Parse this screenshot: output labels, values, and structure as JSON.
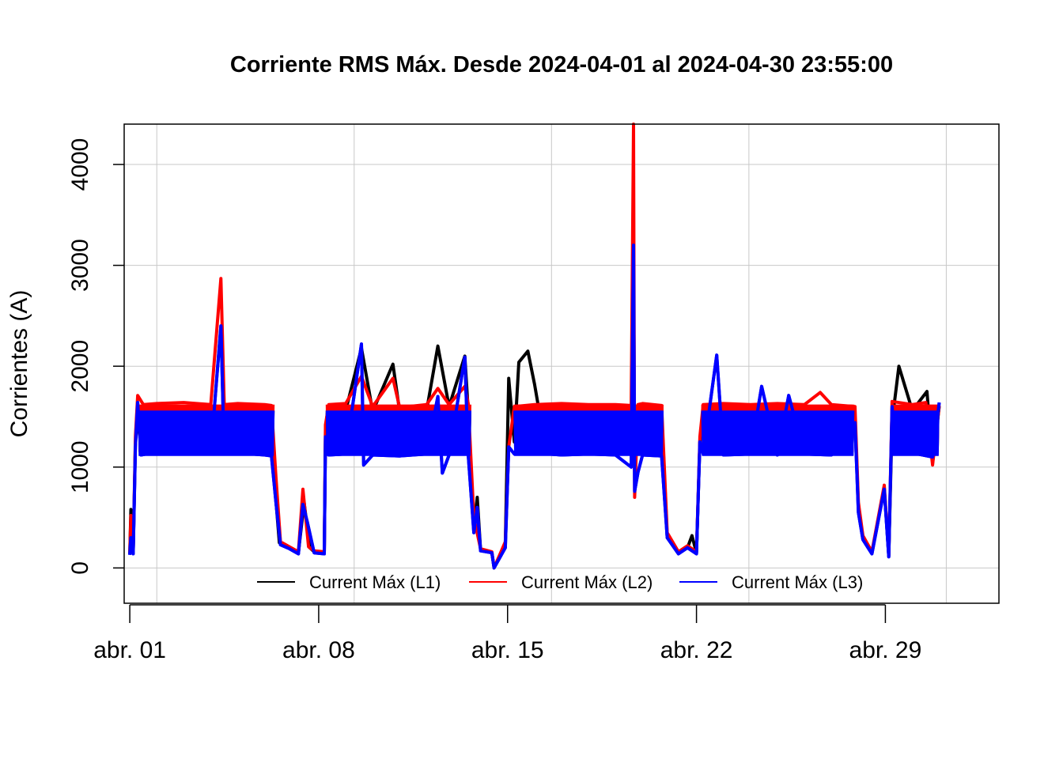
{
  "chart_data": {
    "type": "line",
    "title": "Corriente RMS Máx. Desde  2024-04-01  al  2024-04-30 23:55:00",
    "xlabel": "",
    "ylabel": "Corrientes (A)",
    "xlim": [
      "2024-03-31T19:00",
      "2024-05-03T05:00"
    ],
    "ylim": [
      -350,
      4400
    ],
    "x_ticks": [
      {
        "label": "abr. 01",
        "date": "2024-04-01T00:00"
      },
      {
        "label": "abr. 08",
        "date": "2024-04-08T00:00"
      },
      {
        "label": "abr. 15",
        "date": "2024-04-15T00:00"
      },
      {
        "label": "abr. 22",
        "date": "2024-04-22T00:00"
      },
      {
        "label": "abr. 29",
        "date": "2024-04-29T00:00"
      }
    ],
    "y_ticks": [
      0,
      1000,
      2000,
      3000,
      4000
    ],
    "grid": true,
    "legend_position": "bottom",
    "series": [
      {
        "name": "Current Máx (L1)",
        "color": "#000000",
        "points": [
          [
            "2024-04-01T00:00",
            140
          ],
          [
            "2024-04-01T01:00",
            580
          ],
          [
            "2024-04-01T03:00",
            150
          ],
          [
            "2024-04-01T05:00",
            1250
          ],
          [
            "2024-04-01T08:00",
            1560
          ],
          [
            "2024-04-02T00:00",
            1540
          ],
          [
            "2024-04-03T00:00",
            1560
          ],
          [
            "2024-04-04T00:00",
            1550
          ],
          [
            "2024-04-04T09:00",
            1580
          ],
          [
            "2024-04-05T00:00",
            1560
          ],
          [
            "2024-04-06T00:00",
            1550
          ],
          [
            "2024-04-06T05:00",
            1560
          ],
          [
            "2024-04-06T09:00",
            800
          ],
          [
            "2024-04-06T13:00",
            250
          ],
          [
            "2024-04-06T22:00",
            200
          ],
          [
            "2024-04-07T06:00",
            150
          ],
          [
            "2024-04-07T11:00",
            650
          ],
          [
            "2024-04-07T16:00",
            200
          ],
          [
            "2024-04-07T20:00",
            160
          ],
          [
            "2024-04-08T05:00",
            150
          ],
          [
            "2024-04-08T06:00",
            1350
          ],
          [
            "2024-04-08T08:00",
            1570
          ],
          [
            "2024-04-09T00:00",
            1560
          ],
          [
            "2024-04-09T14:00",
            2180
          ],
          [
            "2024-04-10T00:00",
            1550
          ],
          [
            "2024-04-10T18:00",
            2020
          ],
          [
            "2024-04-11T00:00",
            1550
          ],
          [
            "2024-04-12T00:00",
            1560
          ],
          [
            "2024-04-12T10:00",
            2200
          ],
          [
            "2024-04-12T20:00",
            1600
          ],
          [
            "2024-04-13T10:00",
            2100
          ],
          [
            "2024-04-13T13:00",
            1560
          ],
          [
            "2024-04-13T18:00",
            380
          ],
          [
            "2024-04-13T21:00",
            700
          ],
          [
            "2024-04-14T00:00",
            180
          ],
          [
            "2024-04-14T10:00",
            150
          ],
          [
            "2024-04-14T12:00",
            0
          ],
          [
            "2024-04-14T22:00",
            250
          ],
          [
            "2024-04-15T01:00",
            1880
          ],
          [
            "2024-04-15T06:00",
            1250
          ],
          [
            "2024-04-15T10:00",
            2040
          ],
          [
            "2024-04-15T18:00",
            2150
          ],
          [
            "2024-04-16T00:00",
            1820
          ],
          [
            "2024-04-16T04:00",
            1560
          ],
          [
            "2024-04-17T00:00",
            1560
          ],
          [
            "2024-04-18T00:00",
            1570
          ],
          [
            "2024-04-19T00:00",
            1550
          ],
          [
            "2024-04-19T18:00",
            1560
          ],
          [
            "2024-04-19T21:00",
            1200
          ],
          [
            "2024-04-20T00:00",
            1560
          ],
          [
            "2024-04-20T17:00",
            1550
          ],
          [
            "2024-04-20T22:00",
            300
          ],
          [
            "2024-04-21T08:00",
            150
          ],
          [
            "2024-04-21T16:00",
            200
          ],
          [
            "2024-04-21T20:00",
            320
          ],
          [
            "2024-04-22T00:00",
            150
          ],
          [
            "2024-04-22T03:00",
            1250
          ],
          [
            "2024-04-22T06:00",
            1570
          ],
          [
            "2024-04-23T00:00",
            1560
          ],
          [
            "2024-04-24T00:00",
            1570
          ],
          [
            "2024-04-25T00:00",
            1560
          ],
          [
            "2024-04-26T00:00",
            1560
          ],
          [
            "2024-04-27T00:00",
            1560
          ],
          [
            "2024-04-27T21:00",
            1500
          ],
          [
            "2024-04-28T00:00",
            600
          ],
          [
            "2024-04-28T04:00",
            300
          ],
          [
            "2024-04-28T12:00",
            150
          ],
          [
            "2024-04-28T23:00",
            800
          ],
          [
            "2024-04-29T03:00",
            120
          ],
          [
            "2024-04-29T06:00",
            1450
          ],
          [
            "2024-04-29T12:00",
            2000
          ],
          [
            "2024-04-30T00:00",
            1560
          ],
          [
            "2024-04-30T13:00",
            1750
          ],
          [
            "2024-04-30T18:00",
            1040
          ],
          [
            "2024-04-30T23:55",
            1600
          ]
        ]
      },
      {
        "name": "Current Máx (L2)",
        "color": "#ff0000",
        "points": [
          [
            "2024-04-01T00:00",
            150
          ],
          [
            "2024-04-01T01:00",
            520
          ],
          [
            "2024-04-01T03:00",
            160
          ],
          [
            "2024-04-01T05:00",
            1300
          ],
          [
            "2024-04-01T07:00",
            1710
          ],
          [
            "2024-04-01T12:00",
            1620
          ],
          [
            "2024-04-02T00:00",
            1630
          ],
          [
            "2024-04-03T00:00",
            1640
          ],
          [
            "2024-04-04T00:00",
            1620
          ],
          [
            "2024-04-04T09:00",
            2870
          ],
          [
            "2024-04-04T12:00",
            1620
          ],
          [
            "2024-04-05T00:00",
            1630
          ],
          [
            "2024-04-06T00:00",
            1620
          ],
          [
            "2024-04-06T06:00",
            1610
          ],
          [
            "2024-04-06T10:00",
            900
          ],
          [
            "2024-04-06T14:00",
            260
          ],
          [
            "2024-04-06T22:00",
            210
          ],
          [
            "2024-04-07T06:00",
            160
          ],
          [
            "2024-04-07T10:00",
            780
          ],
          [
            "2024-04-07T15:00",
            210
          ],
          [
            "2024-04-07T20:00",
            170
          ],
          [
            "2024-04-08T05:00",
            160
          ],
          [
            "2024-04-08T06:00",
            1420
          ],
          [
            "2024-04-08T09:00",
            1620
          ],
          [
            "2024-04-09T00:00",
            1630
          ],
          [
            "2024-04-09T14:00",
            1900
          ],
          [
            "2024-04-10T00:00",
            1600
          ],
          [
            "2024-04-10T18:00",
            1880
          ],
          [
            "2024-04-11T00:00",
            1590
          ],
          [
            "2024-04-12T00:00",
            1620
          ],
          [
            "2024-04-12T10:00",
            1780
          ],
          [
            "2024-04-12T20:00",
            1620
          ],
          [
            "2024-04-13T10:00",
            1800
          ],
          [
            "2024-04-13T13:00",
            1630
          ],
          [
            "2024-04-13T18:00",
            500
          ],
          [
            "2024-04-14T00:00",
            190
          ],
          [
            "2024-04-14T10:00",
            160
          ],
          [
            "2024-04-14T12:00",
            0
          ],
          [
            "2024-04-14T22:00",
            260
          ],
          [
            "2024-04-15T01:00",
            1200
          ],
          [
            "2024-04-15T06:00",
            1600
          ],
          [
            "2024-04-16T00:00",
            1620
          ],
          [
            "2024-04-17T00:00",
            1630
          ],
          [
            "2024-04-18T00:00",
            1620
          ],
          [
            "2024-04-19T00:00",
            1620
          ],
          [
            "2024-04-19T14:00",
            1610
          ],
          [
            "2024-04-19T16:00",
            4400
          ],
          [
            "2024-04-19T17:00",
            700
          ],
          [
            "2024-04-19T20:00",
            1620
          ],
          [
            "2024-04-20T00:00",
            1630
          ],
          [
            "2024-04-20T17:00",
            1610
          ],
          [
            "2024-04-20T22:00",
            350
          ],
          [
            "2024-04-21T08:00",
            160
          ],
          [
            "2024-04-21T16:00",
            220
          ],
          [
            "2024-04-22T00:00",
            160
          ],
          [
            "2024-04-22T03:00",
            1300
          ],
          [
            "2024-04-22T06:00",
            1620
          ],
          [
            "2024-04-23T00:00",
            1630
          ],
          [
            "2024-04-24T00:00",
            1620
          ],
          [
            "2024-04-25T00:00",
            1630
          ],
          [
            "2024-04-26T00:00",
            1620
          ],
          [
            "2024-04-26T14:00",
            1740
          ],
          [
            "2024-04-27T00:00",
            1620
          ],
          [
            "2024-04-27T21:00",
            1600
          ],
          [
            "2024-04-28T00:00",
            650
          ],
          [
            "2024-04-28T04:00",
            320
          ],
          [
            "2024-04-28T12:00",
            160
          ],
          [
            "2024-04-28T23:00",
            820
          ],
          [
            "2024-04-29T03:00",
            130
          ],
          [
            "2024-04-29T06:00",
            1650
          ],
          [
            "2024-04-30T00:00",
            1620
          ],
          [
            "2024-04-30T12:00",
            1640
          ],
          [
            "2024-04-30T18:00",
            1020
          ],
          [
            "2024-04-30T23:55",
            1610
          ]
        ]
      },
      {
        "name": "Current Máx (L3)",
        "color": "#0000ff",
        "points": [
          [
            "2024-04-01T00:00",
            130
          ],
          [
            "2024-04-01T01:00",
            300
          ],
          [
            "2024-04-01T03:00",
            140
          ],
          [
            "2024-04-01T05:00",
            1200
          ],
          [
            "2024-04-01T07:00",
            1640
          ],
          [
            "2024-04-01T10:00",
            1120
          ],
          [
            "2024-04-02T00:00",
            1150
          ],
          [
            "2024-04-03T00:00",
            1130
          ],
          [
            "2024-04-04T00:00",
            1140
          ],
          [
            "2024-04-04T09:00",
            2400
          ],
          [
            "2024-04-04T12:00",
            1130
          ],
          [
            "2024-04-05T00:00",
            1140
          ],
          [
            "2024-04-06T00:00",
            1120
          ],
          [
            "2024-04-06T06:00",
            1110
          ],
          [
            "2024-04-06T10:00",
            650
          ],
          [
            "2024-04-06T14:00",
            230
          ],
          [
            "2024-04-06T22:00",
            190
          ],
          [
            "2024-04-07T06:00",
            140
          ],
          [
            "2024-04-07T10:00",
            630
          ],
          [
            "2024-04-07T14:00",
            450
          ],
          [
            "2024-04-07T20:00",
            150
          ],
          [
            "2024-04-08T05:00",
            140
          ],
          [
            "2024-04-08T06:00",
            1300
          ],
          [
            "2024-04-08T09:00",
            1120
          ],
          [
            "2024-04-09T00:00",
            1130
          ],
          [
            "2024-04-09T14:00",
            2220
          ],
          [
            "2024-04-09T16:00",
            1020
          ],
          [
            "2024-04-10T00:00",
            1120
          ],
          [
            "2024-04-11T00:00",
            1110
          ],
          [
            "2024-04-12T00:00",
            1130
          ],
          [
            "2024-04-12T10:00",
            1700
          ],
          [
            "2024-04-12T14:00",
            940
          ],
          [
            "2024-04-12T20:00",
            1120
          ],
          [
            "2024-04-13T10:00",
            2090
          ],
          [
            "2024-04-13T13:00",
            1120
          ],
          [
            "2024-04-13T18:00",
            350
          ],
          [
            "2024-04-13T21:00",
            600
          ],
          [
            "2024-04-14T00:00",
            170
          ],
          [
            "2024-04-14T10:00",
            150
          ],
          [
            "2024-04-14T12:00",
            0
          ],
          [
            "2024-04-14T22:00",
            200
          ],
          [
            "2024-04-15T01:00",
            1200
          ],
          [
            "2024-04-15T06:00",
            1130
          ],
          [
            "2024-04-16T00:00",
            1140
          ],
          [
            "2024-04-17T00:00",
            1120
          ],
          [
            "2024-04-18T00:00",
            1130
          ],
          [
            "2024-04-19T00:00",
            1120
          ],
          [
            "2024-04-19T14:00",
            1000
          ],
          [
            "2024-04-19T16:00",
            3200
          ],
          [
            "2024-04-19T17:00",
            760
          ],
          [
            "2024-04-19T20:00",
            950
          ],
          [
            "2024-04-20T00:00",
            1120
          ],
          [
            "2024-04-20T17:00",
            1110
          ],
          [
            "2024-04-20T22:00",
            300
          ],
          [
            "2024-04-21T08:00",
            140
          ],
          [
            "2024-04-21T16:00",
            200
          ],
          [
            "2024-04-22T00:00",
            140
          ],
          [
            "2024-04-22T03:00",
            1250
          ],
          [
            "2024-04-22T06:00",
            1130
          ],
          [
            "2024-04-22T18:00",
            2110
          ],
          [
            "2024-04-23T00:00",
            1120
          ],
          [
            "2024-04-24T00:00",
            1130
          ],
          [
            "2024-04-24T10:00",
            1800
          ],
          [
            "2024-04-25T00:00",
            1120
          ],
          [
            "2024-04-25T10:00",
            1710
          ],
          [
            "2024-04-26T00:00",
            1130
          ],
          [
            "2024-04-27T00:00",
            1120
          ],
          [
            "2024-04-27T21:00",
            1440
          ],
          [
            "2024-04-28T00:00",
            550
          ],
          [
            "2024-04-28T04:00",
            280
          ],
          [
            "2024-04-28T12:00",
            140
          ],
          [
            "2024-04-28T23:00",
            780
          ],
          [
            "2024-04-29T03:00",
            110
          ],
          [
            "2024-04-29T06:00",
            1600
          ],
          [
            "2024-04-29T10:00",
            1130
          ],
          [
            "2024-04-30T00:00",
            1140
          ],
          [
            "2024-04-30T18:00",
            1100
          ],
          [
            "2024-04-30T23:55",
            1640
          ]
        ]
      }
    ]
  }
}
